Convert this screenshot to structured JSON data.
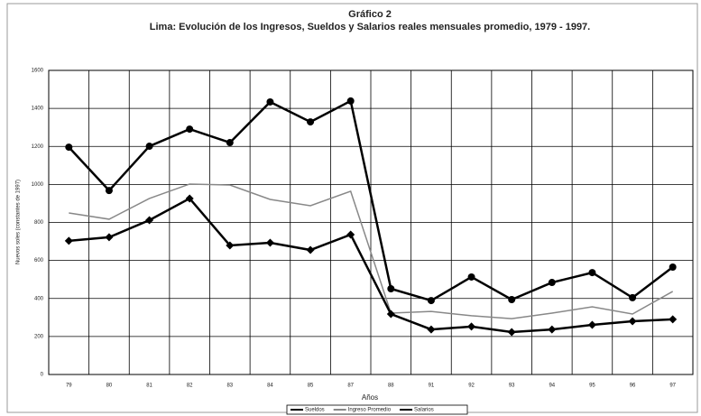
{
  "chart_data": {
    "type": "line",
    "title": "Gráfico 2",
    "subtitle": "Lima: Evolución de los Ingresos, Sueldos y Salarios reales mensuales promedio, 1979 - 1997.",
    "x_label": "Años",
    "y_label": "Nuevos soles (constantes de 1997)",
    "categories": [
      "79",
      "80",
      "81",
      "82",
      "83",
      "84",
      "85",
      "87",
      "88",
      "91",
      "92",
      "93",
      "94",
      "95",
      "96",
      "97"
    ],
    "series": [
      {
        "name": "Sueldos",
        "color": "#000000",
        "marker": "circle",
        "values": [
          1196,
          968,
          1201,
          1291,
          1220,
          1434,
          1329,
          1439,
          451,
          389,
          513,
          394,
          484,
          536,
          404,
          565
        ]
      },
      {
        "name": "Ingreso Promedio",
        "color": "#888888",
        "values": [
          850,
          817,
          926,
          1002,
          997,
          921,
          888,
          964,
          323,
          332,
          309,
          294,
          323,
          356,
          318,
          437
        ]
      },
      {
        "name": "Salarios",
        "color": "#000000",
        "marker": "diamond",
        "values": [
          703,
          722,
          812,
          926,
          679,
          693,
          655,
          736,
          318,
          237,
          252,
          223,
          237,
          261,
          280,
          290
        ]
      }
    ],
    "ylim": [
      0,
      1600
    ],
    "yticks": [
      0,
      200,
      400,
      600,
      800,
      1000,
      1200,
      1400,
      1600
    ],
    "grid": true
  }
}
